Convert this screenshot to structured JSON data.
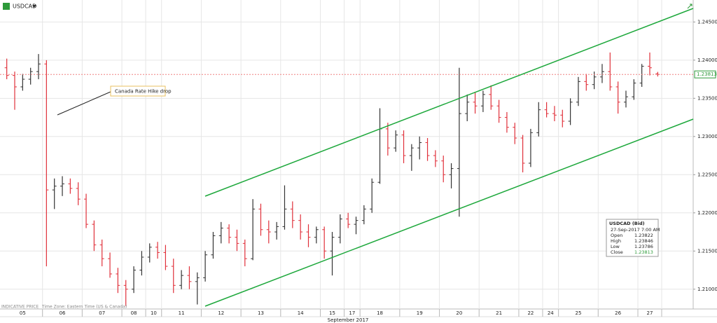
{
  "chart_data": {
    "type": "ohlc",
    "title": "USDCAD",
    "x_label": "September 2017",
    "footer": [
      "INDICATIVE PRICE",
      "Time Zone: Eastern Time (US & Canada)"
    ],
    "annotation": "Canada Rate Hike drop",
    "up_color": "#333333",
    "down_color": "#e0303a",
    "channel_color": "#1ea83c",
    "ylim": [
      1.2075,
      1.2465
    ],
    "yticks": [
      {
        "value": 1.21,
        "label": "1.21000"
      },
      {
        "value": 1.215,
        "label": "1.21500"
      },
      {
        "value": 1.22,
        "label": "1.22000"
      },
      {
        "value": 1.225,
        "label": "1.22500"
      },
      {
        "value": 1.23,
        "label": "1.23000"
      },
      {
        "value": 1.235,
        "label": "1.23500"
      },
      {
        "value": 1.24,
        "label": "1.24000"
      },
      {
        "value": 1.245,
        "label": "1.24500"
      }
    ],
    "last_price": 1.23813,
    "info": {
      "title": "USDCAD (Bid)",
      "time": "27-Sep-2017 7:00 AM",
      "fields": [
        "Open",
        "High",
        "Low",
        "Close"
      ]
    },
    "days": [
      {
        "label": "05",
        "bars": [
          [
            1.239,
            1.2402,
            1.2375,
            1.238
          ],
          [
            1.238,
            1.2385,
            1.2335,
            1.2365
          ],
          [
            1.2365,
            1.2382,
            1.236,
            1.2375
          ],
          [
            1.2375,
            1.239,
            1.2368,
            1.2385
          ],
          [
            1.2385,
            1.2408,
            1.2375,
            1.2395
          ]
        ]
      },
      {
        "label": "06",
        "bars": [
          [
            1.2395,
            1.24,
            1.213,
            1.223
          ],
          [
            1.223,
            1.2245,
            1.2205,
            1.2235
          ],
          [
            1.2235,
            1.2248,
            1.2222,
            1.2238
          ],
          [
            1.2238,
            1.2245,
            1.2225,
            1.2232
          ],
          [
            1.2232,
            1.224,
            1.221,
            1.2218
          ]
        ]
      },
      {
        "label": "07",
        "bars": [
          [
            1.2218,
            1.2225,
            1.218,
            1.2185
          ],
          [
            1.2185,
            1.219,
            1.215,
            1.2158
          ],
          [
            1.2158,
            1.2165,
            1.213,
            1.214
          ],
          [
            1.214,
            1.2148,
            1.2115,
            1.212
          ],
          [
            1.212,
            1.2128,
            1.2095,
            1.2105
          ]
        ]
      },
      {
        "label": "08",
        "bars": [
          [
            1.2105,
            1.2112,
            1.2078,
            1.21
          ],
          [
            1.21,
            1.213,
            1.2095,
            1.2125
          ],
          [
            1.2125,
            1.215,
            1.2118,
            1.2142
          ]
        ]
      },
      {
        "label": "10",
        "bars": [
          [
            1.2142,
            1.216,
            1.2135,
            1.2155
          ],
          [
            1.2155,
            1.2162,
            1.214,
            1.2148
          ]
        ]
      },
      {
        "label": "11",
        "bars": [
          [
            1.2148,
            1.2158,
            1.2125,
            1.213
          ],
          [
            1.213,
            1.214,
            1.2095,
            1.2105
          ],
          [
            1.2105,
            1.2125,
            1.21,
            1.2118
          ],
          [
            1.2118,
            1.213,
            1.21,
            1.211
          ],
          [
            1.211,
            1.2122,
            1.208,
            1.2115
          ]
        ]
      },
      {
        "label": "12",
        "bars": [
          [
            1.2115,
            1.215,
            1.211,
            1.2145
          ],
          [
            1.2145,
            1.2175,
            1.214,
            1.217
          ],
          [
            1.217,
            1.2188,
            1.216,
            1.218
          ],
          [
            1.218,
            1.2185,
            1.216,
            1.2168
          ],
          [
            1.2168,
            1.2178,
            1.215,
            1.216
          ]
        ]
      },
      {
        "label": "13",
        "bars": [
          [
            1.216,
            1.2165,
            1.213,
            1.214
          ],
          [
            1.214,
            1.2218,
            1.2138,
            1.2205
          ],
          [
            1.2205,
            1.2212,
            1.217,
            1.2178
          ],
          [
            1.2178,
            1.219,
            1.216,
            1.2175
          ],
          [
            1.2175,
            1.2188,
            1.2165,
            1.2182
          ]
        ]
      },
      {
        "label": "14",
        "bars": [
          [
            1.2182,
            1.2236,
            1.2178,
            1.2205
          ],
          [
            1.2205,
            1.2215,
            1.218,
            1.219
          ],
          [
            1.219,
            1.2198,
            1.2165,
            1.2175
          ],
          [
            1.2175,
            1.2185,
            1.2155,
            1.2168
          ],
          [
            1.2168,
            1.2182,
            1.216,
            1.2178
          ]
        ]
      },
      {
        "label": "15",
        "bars": [
          [
            1.2178,
            1.2182,
            1.214,
            1.215
          ],
          [
            1.215,
            1.2175,
            1.2118,
            1.2168
          ],
          [
            1.2168,
            1.2198,
            1.216,
            1.2192
          ]
        ]
      },
      {
        "label": "17",
        "bars": [
          [
            1.2192,
            1.22,
            1.218,
            1.2185
          ],
          [
            1.2185,
            1.2195,
            1.2172,
            1.219
          ]
        ]
      },
      {
        "label": "18",
        "bars": [
          [
            1.219,
            1.221,
            1.2185,
            1.2205
          ],
          [
            1.2205,
            1.2245,
            1.22,
            1.224
          ],
          [
            1.224,
            1.2337,
            1.2238,
            1.231
          ],
          [
            1.231,
            1.2318,
            1.2275,
            1.2285
          ],
          [
            1.2285,
            1.2308,
            1.228,
            1.2302
          ]
        ]
      },
      {
        "label": "19",
        "bars": [
          [
            1.2302,
            1.2308,
            1.2265,
            1.2275
          ],
          [
            1.2275,
            1.229,
            1.2255,
            1.2285
          ],
          [
            1.2285,
            1.23,
            1.227,
            1.2292
          ],
          [
            1.2292,
            1.2298,
            1.2268,
            1.2275
          ],
          [
            1.2275,
            1.2282,
            1.226,
            1.2268
          ]
        ]
      },
      {
        "label": "20",
        "bars": [
          [
            1.2268,
            1.2275,
            1.224,
            1.225
          ],
          [
            1.225,
            1.2265,
            1.2232,
            1.2258
          ],
          [
            1.2258,
            1.239,
            1.2195,
            1.233
          ],
          [
            1.233,
            1.2355,
            1.232,
            1.2345
          ],
          [
            1.2345,
            1.2358,
            1.233,
            1.234
          ]
        ]
      },
      {
        "label": "21",
        "bars": [
          [
            1.234,
            1.236,
            1.2332,
            1.2355
          ],
          [
            1.2355,
            1.2367,
            1.2335,
            1.234
          ],
          [
            1.234,
            1.2348,
            1.2318,
            1.2325
          ],
          [
            1.2325,
            1.2332,
            1.2305,
            1.2312
          ],
          [
            1.2312,
            1.2318,
            1.229,
            1.2298
          ]
        ]
      },
      {
        "label": "22",
        "bars": [
          [
            1.2298,
            1.2302,
            1.2253,
            1.2265
          ],
          [
            1.2265,
            1.231,
            1.226,
            1.2305
          ],
          [
            1.2305,
            1.2345,
            1.23,
            1.2335
          ]
        ]
      },
      {
        "label": "24",
        "bars": [
          [
            1.2335,
            1.2345,
            1.2325,
            1.233
          ],
          [
            1.233,
            1.234,
            1.232,
            1.2328
          ]
        ]
      },
      {
        "label": "25",
        "bars": [
          [
            1.2328,
            1.2335,
            1.2312,
            1.232
          ],
          [
            1.232,
            1.235,
            1.2315,
            1.2345
          ],
          [
            1.2345,
            1.2378,
            1.234,
            1.2372
          ],
          [
            1.2372,
            1.2382,
            1.236,
            1.2368
          ],
          [
            1.2368,
            1.2385,
            1.2362,
            1.2378
          ]
        ]
      },
      {
        "label": "26",
        "bars": [
          [
            1.2378,
            1.2395,
            1.237,
            1.2385
          ],
          [
            1.2385,
            1.241,
            1.236,
            1.2365
          ],
          [
            1.2365,
            1.2372,
            1.233,
            1.2345
          ],
          [
            1.2345,
            1.236,
            1.2338,
            1.2352
          ],
          [
            1.2352,
            1.2375,
            1.2348,
            1.237
          ]
        ]
      },
      {
        "label": "27",
        "bars": [
          [
            1.237,
            1.2395,
            1.2365,
            1.2392
          ],
          [
            1.2392,
            1.241,
            1.238,
            1.239
          ],
          [
            1.23822,
            1.23846,
            1.23786,
            1.23813
          ]
        ]
      }
    ]
  }
}
